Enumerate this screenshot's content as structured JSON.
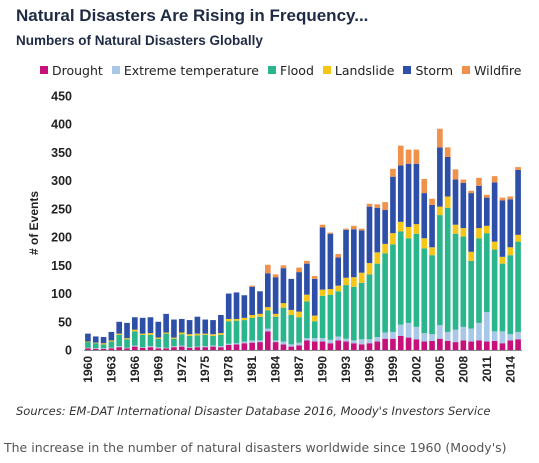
{
  "title": "Natural Disasters Are Rising in Frequency...",
  "subtitle": "Numbers of Natural Disasters Globally",
  "source": "Sources: EM-DAT International Disaster Database 2016, Moody's Investors Service",
  "caption": "The increase in the number of natural disasters worldwide since 1960 (Moody's)",
  "chart_data": {
    "type": "bar",
    "stacked": true,
    "ylabel": "# of Events",
    "xlabel": "",
    "ylim": [
      0,
      450
    ],
    "yticks": [
      0,
      50,
      100,
      150,
      200,
      250,
      300,
      350,
      400,
      450
    ],
    "grid": false,
    "legend_position": "top",
    "x": [
      1960,
      1961,
      1962,
      1963,
      1964,
      1965,
      1966,
      1967,
      1968,
      1969,
      1970,
      1971,
      1972,
      1973,
      1974,
      1975,
      1976,
      1977,
      1978,
      1979,
      1980,
      1981,
      1982,
      1983,
      1984,
      1985,
      1986,
      1987,
      1988,
      1989,
      1990,
      1991,
      1992,
      1993,
      1994,
      1995,
      1996,
      1997,
      1998,
      1999,
      2000,
      2001,
      2002,
      2003,
      2004,
      2005,
      2006,
      2007,
      2008,
      2009,
      2010,
      2011,
      2012,
      2013,
      2014,
      2015
    ],
    "x_tick_labels": [
      "1960",
      "1963",
      "1966",
      "1969",
      "1972",
      "1975",
      "1978",
      "1981",
      "1984",
      "1987",
      "1990",
      "1993",
      "1996",
      "1999",
      "2002",
      "2005",
      "2008",
      "2011",
      "2014"
    ],
    "series": [
      {
        "name": "Drought",
        "color": "#c8107b",
        "values": [
          3,
          2,
          2,
          3,
          5,
          3,
          6,
          4,
          5,
          3,
          3,
          5,
          6,
          4,
          5,
          5,
          6,
          5,
          9,
          10,
          12,
          13,
          14,
          33,
          14,
          10,
          6,
          8,
          17,
          15,
          15,
          12,
          17,
          15,
          12,
          10,
          12,
          15,
          20,
          20,
          25,
          22,
          19,
          15,
          16,
          20,
          16,
          14,
          17,
          15,
          17,
          15,
          16,
          12,
          17,
          19
        ]
      },
      {
        "name": "Extreme temperature",
        "color": "#a9c8e8",
        "values": [
          1,
          1,
          1,
          1,
          2,
          1,
          2,
          1,
          2,
          2,
          1,
          2,
          2,
          1,
          1,
          2,
          2,
          2,
          2,
          2,
          3,
          4,
          3,
          5,
          3,
          5,
          4,
          5,
          4,
          6,
          6,
          6,
          7,
          5,
          5,
          9,
          7,
          8,
          11,
          12,
          20,
          26,
          22,
          15,
          12,
          24,
          16,
          22,
          24,
          23,
          31,
          52,
          17,
          21,
          11,
          13
        ]
      },
      {
        "name": "Flood",
        "color": "#2bb58c",
        "values": [
          10,
          9,
          7,
          11,
          20,
          15,
          25,
          22,
          20,
          15,
          25,
          13,
          20,
          20,
          20,
          20,
          17,
          20,
          40,
          40,
          38,
          40,
          42,
          32,
          42,
          60,
          52,
          45,
          65,
          30,
          75,
          80,
          80,
          95,
          95,
          100,
          115,
          130,
          140,
          155,
          165,
          150,
          165,
          150,
          140,
          195,
          220,
          170,
          160,
          120,
          150,
          140,
          145,
          120,
          140,
          160
        ]
      },
      {
        "name": "Landslide",
        "color": "#f5c518",
        "values": [
          1,
          1,
          2,
          2,
          2,
          2,
          3,
          2,
          3,
          2,
          2,
          2,
          3,
          3,
          3,
          2,
          3,
          3,
          4,
          3,
          4,
          5,
          5,
          6,
          5,
          8,
          9,
          10,
          12,
          10,
          11,
          10,
          10,
          13,
          17,
          18,
          20,
          20,
          17,
          20,
          17,
          20,
          17,
          18,
          14,
          15,
          20,
          16,
          15,
          16,
          18,
          13,
          14,
          12,
          14,
          12
        ]
      },
      {
        "name": "Storm",
        "color": "#2e4fa8",
        "values": [
          14,
          11,
          11,
          15,
          21,
          27,
          22,
          28,
          28,
          28,
          33,
          32,
          24,
          25,
          30,
          25,
          25,
          32,
          45,
          47,
          40,
          50,
          40,
          60,
          65,
          62,
          55,
          70,
          55,
          65,
          110,
          98,
          50,
          85,
          85,
          75,
          100,
          79,
          60,
          100,
          100,
          112,
          107,
          80,
          75,
          105,
          70,
          80,
          80,
          104,
          75,
          50,
          105,
          100,
          85,
          115
        ]
      },
      {
        "name": "Wildfire",
        "color": "#f0914c",
        "values": [
          0,
          0,
          0,
          0,
          0,
          0,
          0,
          0,
          0,
          0,
          0,
          0,
          0,
          0,
          0,
          0,
          0,
          0,
          0,
          0,
          0,
          2,
          0,
          15,
          5,
          5,
          0,
          8,
          5,
          5,
          5,
          2,
          6,
          2,
          6,
          3,
          5,
          6,
          14,
          14,
          35,
          25,
          25,
          25,
          11,
          33,
          17,
          18,
          6,
          4,
          14,
          5,
          11,
          5,
          5,
          5
        ]
      }
    ]
  }
}
